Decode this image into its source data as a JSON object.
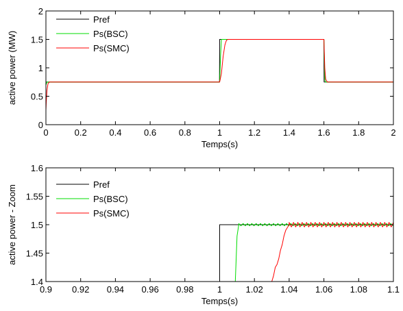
{
  "chart_data": [
    {
      "type": "line",
      "xlabel": "Temps(s)",
      "ylabel": "active power (MW)",
      "xlim": [
        0,
        2
      ],
      "ylim": [
        0,
        2
      ],
      "xticks": [
        0,
        0.2,
        0.4,
        0.6,
        0.8,
        1,
        1.2,
        1.4,
        1.6,
        1.8,
        2
      ],
      "xtick_labels": [
        "0",
        "0.2",
        "0.4",
        "0.6",
        "0.8",
        "1",
        "1.2",
        "1.4",
        "1.6",
        "1.8",
        "2"
      ],
      "yticks": [
        0,
        0.5,
        1,
        1.5,
        2
      ],
      "ytick_labels": [
        "0",
        "0.5",
        "1",
        "1.5",
        "2"
      ],
      "grid": false,
      "legend": "top-left",
      "series": [
        {
          "name": "Pref",
          "color": "#000000",
          "x": [
            0,
            0.999,
            1.0,
            1.6,
            1.601,
            2.0
          ],
          "y": [
            0.75,
            0.75,
            1.5,
            1.5,
            0.75,
            0.75
          ]
        },
        {
          "name": "Ps(BSC)",
          "color": "#00dd00",
          "x": [
            0,
            0.003,
            0.006,
            0.01,
            1.0,
            1.005,
            1.01,
            1.6,
            1.603,
            1.606,
            1.61,
            2.0
          ],
          "y": [
            0.7,
            0.72,
            0.75,
            0.75,
            0.75,
            1.2,
            1.5,
            1.5,
            1.1,
            0.78,
            0.75,
            0.75
          ]
        },
        {
          "name": "Ps(SMC)",
          "color": "#ff0000",
          "x": [
            0,
            0.002,
            0.006,
            0.012,
            0.02,
            1.0,
            1.01,
            1.02,
            1.03,
            1.035,
            1.04,
            1.05,
            1.6,
            1.605,
            1.61,
            1.62,
            2.0
          ],
          "y": [
            0.25,
            0.4,
            0.6,
            0.72,
            0.75,
            0.75,
            0.9,
            1.2,
            1.4,
            1.45,
            1.49,
            1.5,
            1.5,
            1.0,
            0.8,
            0.75,
            0.75
          ]
        }
      ]
    },
    {
      "type": "line",
      "xlabel": "Temps(s)",
      "ylabel": "active power - Zoom",
      "xlim": [
        0.9,
        1.1
      ],
      "ylim": [
        1.4,
        1.6
      ],
      "xticks": [
        0.9,
        0.92,
        0.94,
        0.96,
        0.98,
        1,
        1.02,
        1.04,
        1.06,
        1.08,
        1.1
      ],
      "xtick_labels": [
        "0.9",
        "0.92",
        "0.94",
        "0.96",
        "0.98",
        "1",
        "1.02",
        "1.04",
        "1.06",
        "1.08",
        "1.1"
      ],
      "yticks": [
        1.4,
        1.45,
        1.5,
        1.55,
        1.6
      ],
      "ytick_labels": [
        "1.4",
        "1.45",
        "1.5",
        "1.55",
        "1.6"
      ],
      "grid": false,
      "legend": "top-left",
      "series": [
        {
          "name": "Pref",
          "color": "#000000",
          "x": [
            1.0,
            1.0,
            1.1
          ],
          "y": [
            1.4,
            1.5,
            1.5
          ]
        },
        {
          "name": "Ps(BSC)",
          "color": "#00dd00",
          "x": [
            1.009,
            1.0095,
            1.01,
            1.011,
            1.1
          ],
          "y": [
            1.4,
            1.44,
            1.48,
            1.5,
            1.5
          ],
          "ripple": 0.002,
          "ripple_start": 1.011
        },
        {
          "name": "Ps(SMC)",
          "color": "#ff0000",
          "x": [
            1.03,
            1.031,
            1.032,
            1.033,
            1.034,
            1.035,
            1.036,
            1.037,
            1.038,
            1.039,
            1.04,
            1.1
          ],
          "y": [
            1.4,
            1.41,
            1.425,
            1.43,
            1.44,
            1.455,
            1.465,
            1.48,
            1.49,
            1.495,
            1.5,
            1.5
          ],
          "ripple": 0.004,
          "ripple_start": 1.04
        }
      ]
    }
  ]
}
